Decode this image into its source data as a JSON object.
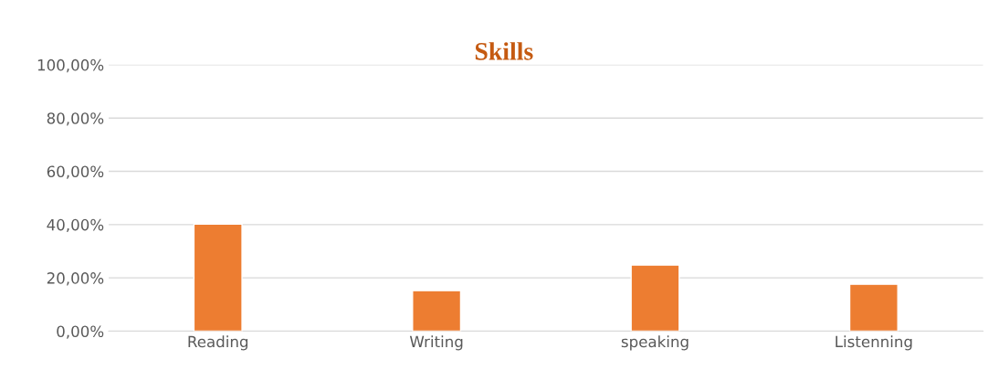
{
  "chart_data": {
    "type": "bar",
    "title": "Skills",
    "categories": [
      "Reading",
      "Writing",
      "speaking",
      "Listenning"
    ],
    "values": [
      40.2,
      15.2,
      24.8,
      17.6
    ],
    "color": "#ed7d31",
    "ylim": [
      0,
      100
    ],
    "yticks": [
      {
        "value": 0,
        "label": "0,00%"
      },
      {
        "value": 20,
        "label": "20,00%"
      },
      {
        "value": 40,
        "label": "40,00%"
      },
      {
        "value": 60,
        "label": "60,00%"
      },
      {
        "value": 80,
        "label": "80,00%"
      },
      {
        "value": 100,
        "label": "100,00%"
      }
    ],
    "grid": "y"
  }
}
